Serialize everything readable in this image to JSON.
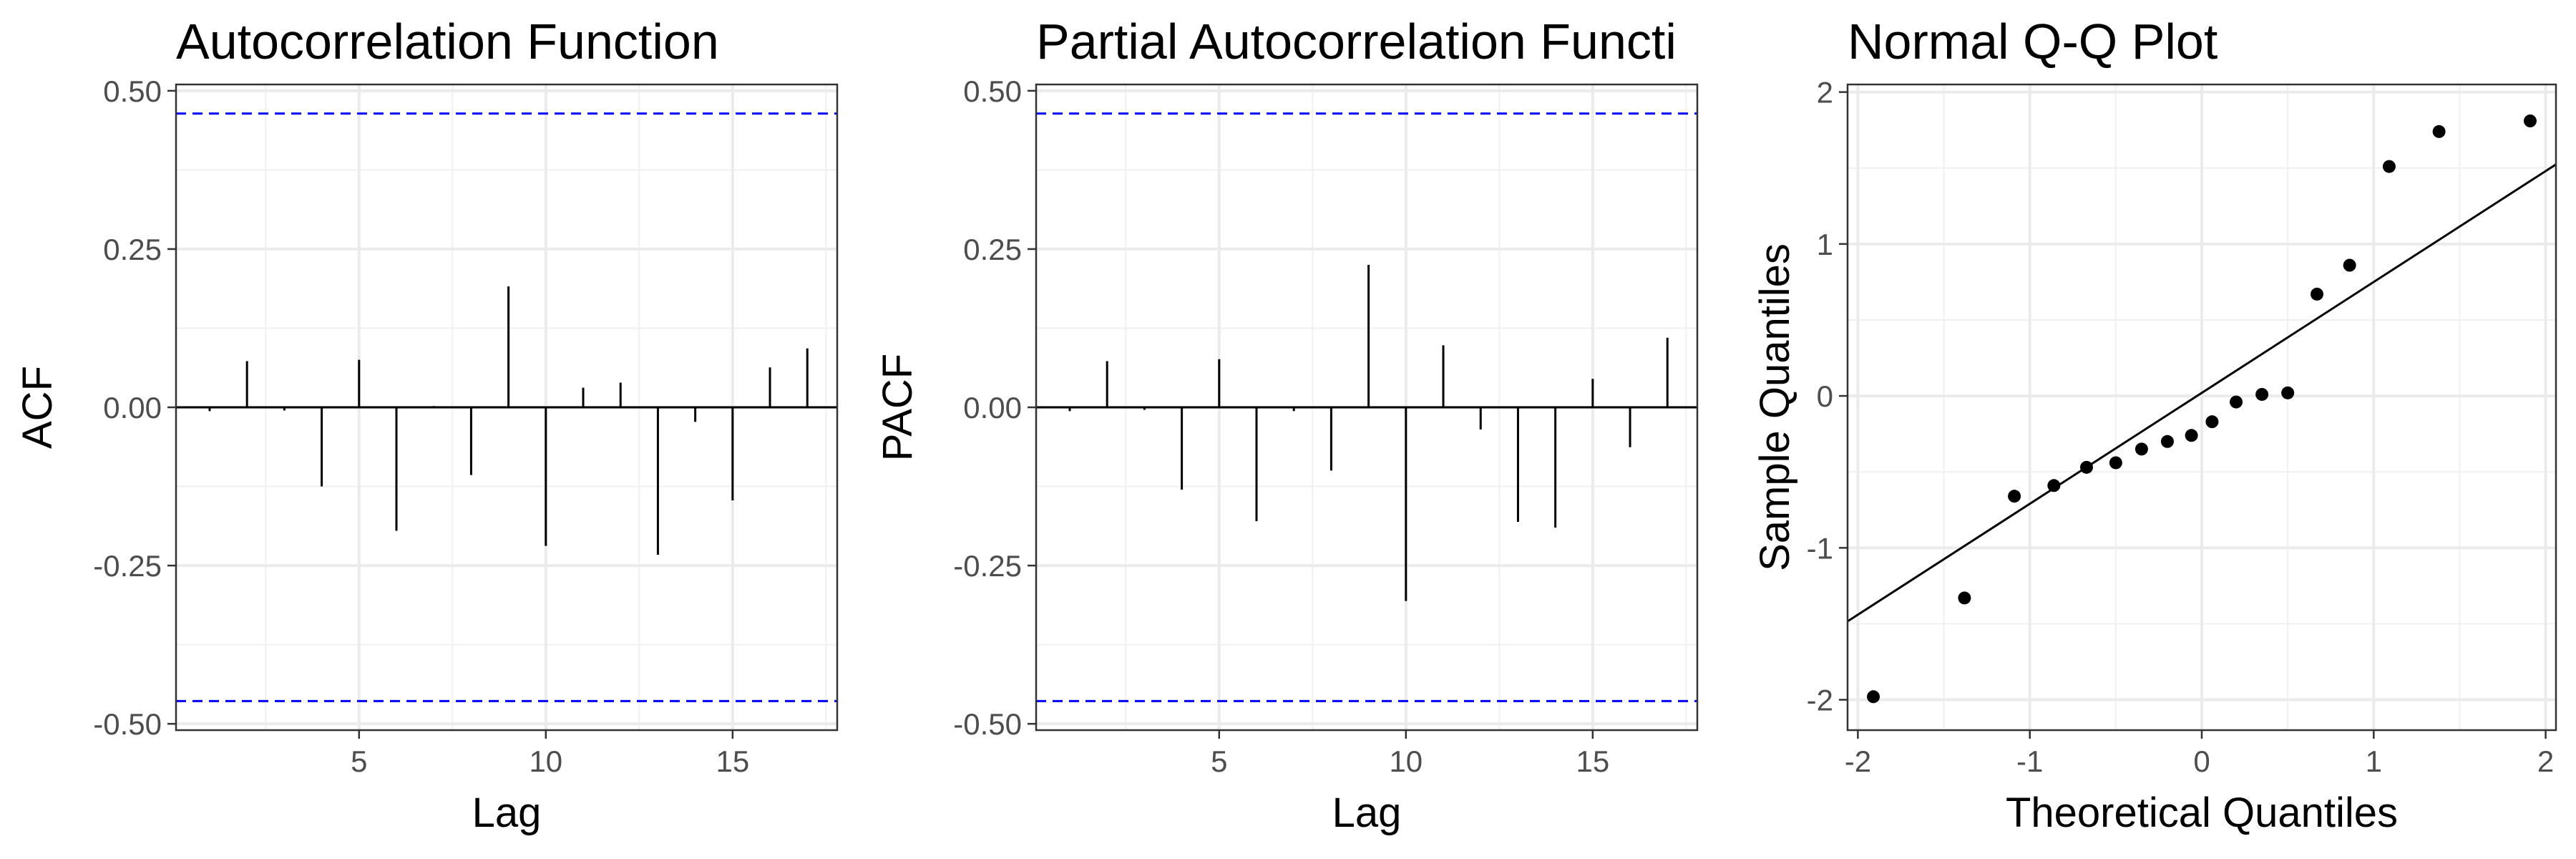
{
  "chart_data": [
    {
      "type": "bar",
      "title": "Autocorrelation Function",
      "xlabel": "Lag",
      "ylabel": "ACF",
      "xlim": [
        0.1,
        17.8
      ],
      "ylim": [
        -0.51,
        0.51
      ],
      "x_ticks": [
        5,
        10,
        15
      ],
      "x_tick_labels": [
        "5",
        "10",
        "15"
      ],
      "y_ticks": [
        0.5,
        0.25,
        0.0,
        -0.25,
        -0.5
      ],
      "y_tick_labels": [
        "0.50",
        "0.25",
        "0.00",
        "-0.25",
        "-0.50"
      ],
      "lags": [
        1,
        2,
        3,
        4,
        5,
        6,
        7,
        8,
        9,
        10,
        11,
        12,
        13,
        14,
        15,
        16,
        17
      ],
      "values": [
        -0.006,
        0.073,
        -0.005,
        -0.125,
        0.075,
        -0.195,
        0.002,
        -0.107,
        0.191,
        -0.219,
        0.031,
        0.039,
        -0.233,
        -0.023,
        -0.147,
        0.063,
        0.093
      ],
      "confidence_bounds": [
        0.464,
        -0.464
      ],
      "confidence_color": "#0000ff",
      "grid": true
    },
    {
      "type": "bar",
      "title": "Partial Autocorrelation Functi",
      "xlabel": "Lag",
      "ylabel": "PACF",
      "xlim": [
        0.1,
        17.8
      ],
      "ylim": [
        -0.51,
        0.51
      ],
      "x_ticks": [
        5,
        10,
        15
      ],
      "x_tick_labels": [
        "5",
        "10",
        "15"
      ],
      "y_ticks": [
        0.5,
        0.25,
        0.0,
        -0.25,
        -0.5
      ],
      "y_tick_labels": [
        "0.50",
        "0.25",
        "0.00",
        "-0.25",
        "-0.50"
      ],
      "lags": [
        1,
        2,
        3,
        4,
        5,
        6,
        7,
        8,
        9,
        10,
        11,
        12,
        13,
        14,
        15,
        16,
        17
      ],
      "values": [
        -0.006,
        0.073,
        -0.004,
        -0.13,
        0.076,
        -0.18,
        -0.006,
        -0.1,
        0.225,
        -0.306,
        0.098,
        -0.035,
        -0.181,
        -0.19,
        0.045,
        -0.063,
        0.11
      ],
      "confidence_bounds": [
        0.464,
        -0.464
      ],
      "confidence_color": "#0000ff",
      "grid": true
    },
    {
      "type": "scatter",
      "title": "Normal Q-Q Plot",
      "xlabel": "Theoretical Quantiles",
      "ylabel": "Sample Quantiles",
      "xlim": [
        -2.06,
        2.06
      ],
      "ylim": [
        -2.2,
        2.05
      ],
      "x_ticks": [
        -2,
        -1,
        0,
        1,
        2
      ],
      "x_tick_labels": [
        "-2",
        "-1",
        "0",
        "1",
        "2"
      ],
      "y_ticks": [
        2,
        1,
        0,
        -1,
        -2
      ],
      "y_tick_labels": [
        "2",
        "1",
        "0",
        "-1",
        "-2"
      ],
      "x": [
        -1.91,
        -1.38,
        -1.09,
        -0.86,
        -0.67,
        -0.5,
        -0.35,
        -0.2,
        -0.06,
        0.06,
        0.2,
        0.35,
        0.5,
        0.67,
        0.86,
        1.09,
        1.38,
        1.91
      ],
      "y": [
        -1.98,
        -1.33,
        -0.66,
        -0.59,
        -0.47,
        -0.44,
        -0.35,
        -0.3,
        -0.26,
        -0.17,
        -0.04,
        0.01,
        0.02,
        0.67,
        0.86,
        1.51,
        1.74,
        1.81
      ],
      "reference_line": {
        "intercept": 0.02,
        "slope": 0.73
      },
      "grid": true
    }
  ]
}
